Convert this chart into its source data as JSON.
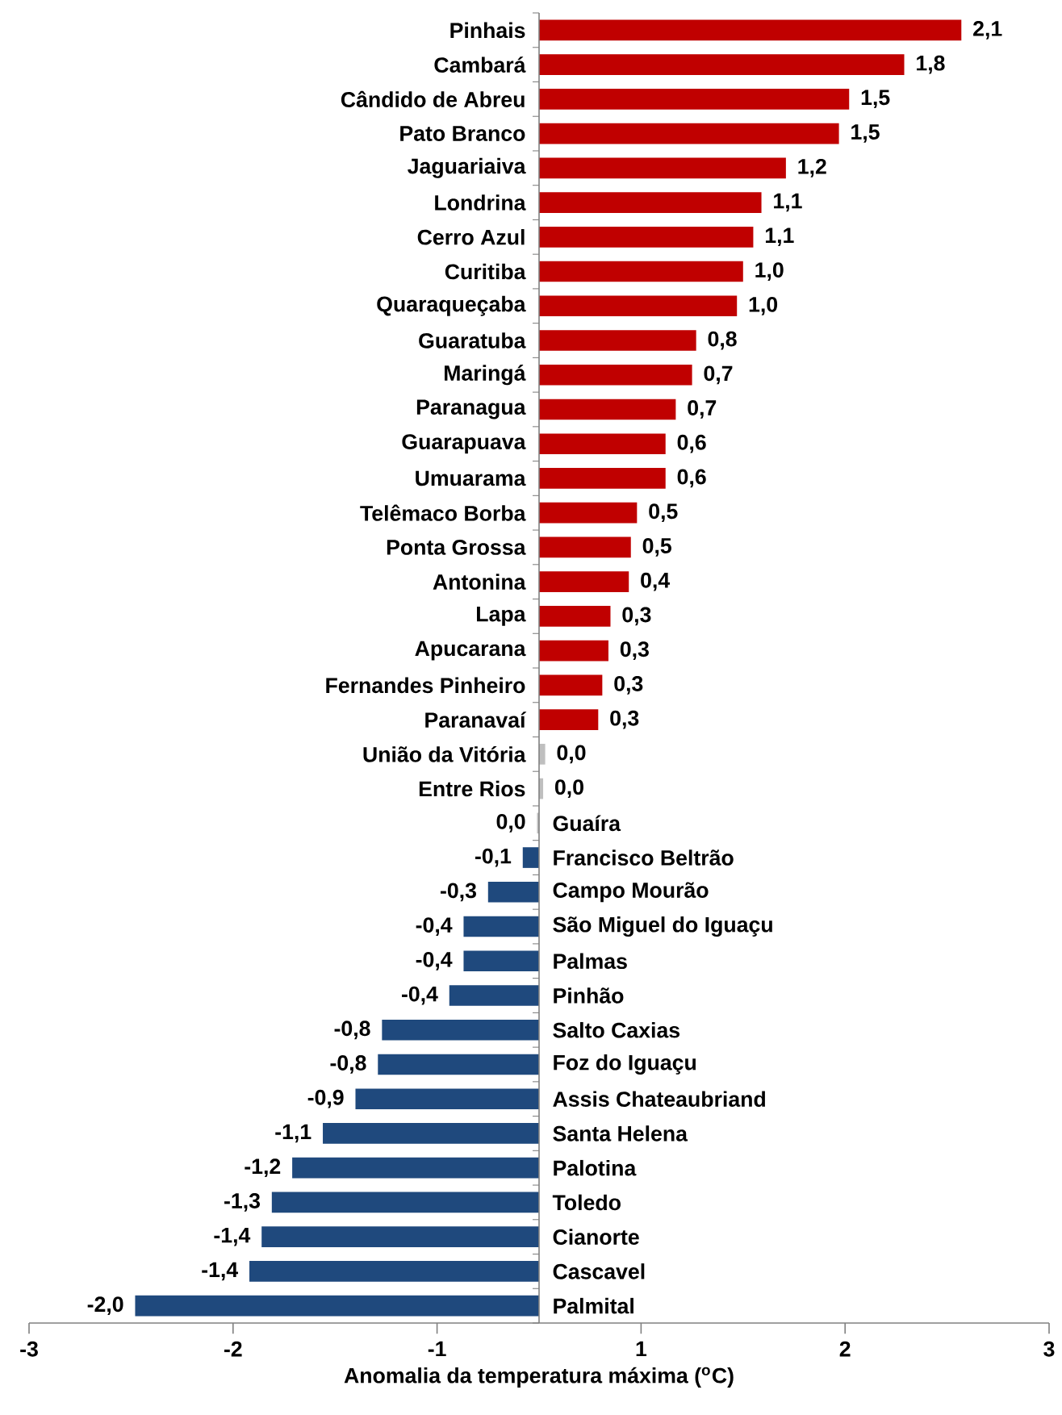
{
  "chart_data": {
    "type": "bar",
    "orientation": "horizontal",
    "xlabel": "Anomalia da temperatura máxima ($^{o}$C)",
    "categories": [
      "Pinhais",
      "Cambará",
      "Cândido de Abreu",
      "Pato Branco",
      "Jaguariaiva",
      "Londrina",
      "Cerro Azul",
      "Curitiba",
      "Quaraqueçaba",
      "Guaratuba",
      "Maringá",
      "Paranagua",
      "Guarapuava",
      "Umuarama",
      "Telêmaco Borba",
      "Ponta Grossa",
      "Antonina",
      "Lapa",
      "Apucarana",
      "Fernandes Pinheiro",
      "Paranavaí",
      "União da Vitória",
      "Entre Rios",
      "Guaíra",
      "Francisco Beltrão",
      "Campo Mourão",
      "São Miguel do Iguaçu",
      "Palmas",
      "Pinhão",
      "Salto Caxias",
      "Foz do Iguaçu",
      "Assis Chateaubriand",
      "Santa Helena",
      "Palotina",
      "Toledo",
      "Cianorte",
      "Cascavel",
      "Palmital"
    ],
    "values": [
      2.07,
      1.79,
      1.52,
      1.47,
      1.21,
      1.09,
      1.05,
      1.0,
      0.97,
      0.77,
      0.75,
      0.67,
      0.62,
      0.62,
      0.48,
      0.45,
      0.44,
      0.35,
      0.34,
      0.31,
      0.29,
      0.03,
      0.02,
      -0.01,
      -0.08,
      -0.25,
      -0.37,
      -0.37,
      -0.44,
      -0.77,
      -0.79,
      -0.9,
      -1.06,
      -1.21,
      -1.31,
      -1.36,
      -1.42,
      -1.98
    ],
    "value_labels": [
      "2,1",
      "1,8",
      "1,5",
      "1,5",
      "1,2",
      "1,1",
      "1,1",
      "1,0",
      "1,0",
      "0,8",
      "0,7",
      "0,7",
      "0,6",
      "0,6",
      "0,5",
      "0,5",
      "0,4",
      "0,3",
      "0,3",
      "0,3",
      "0,3",
      "0,0",
      "0,0",
      "0,0",
      "-0,1",
      "-0,3",
      "-0,4",
      "-0,4",
      "-0,4",
      "-0,8",
      "-0,8",
      "-0,9",
      "-1,1",
      "-1,2",
      "-1,3",
      "-1,4",
      "-1,4",
      "-2,0"
    ],
    "colors": [
      "#c00000",
      "#c00000",
      "#c00000",
      "#c00000",
      "#c00000",
      "#c00000",
      "#c00000",
      "#c00000",
      "#c00000",
      "#c00000",
      "#c00000",
      "#c00000",
      "#c00000",
      "#c00000",
      "#c00000",
      "#c00000",
      "#c00000",
      "#c00000",
      "#c00000",
      "#c00000",
      "#c00000",
      "#bfbfbf",
      "#bfbfbf",
      "#bfbfbf",
      "#1f497d",
      "#1f497d",
      "#1f497d",
      "#1f497d",
      "#1f497d",
      "#1f497d",
      "#1f497d",
      "#1f497d",
      "#1f497d",
      "#1f497d",
      "#1f497d",
      "#1f497d",
      "#1f497d",
      "#1f497d"
    ],
    "xlim": [
      -2.5,
      2.5
    ],
    "xticks": [
      {
        "value": -2.5,
        "label": "-3"
      },
      {
        "value": -1.5,
        "label": "-2"
      },
      {
        "value": -0.5,
        "label": "-1"
      },
      {
        "value": 0.5,
        "label": "1"
      },
      {
        "value": 1.5,
        "label": "2"
      },
      {
        "value": 2.5,
        "label": "3"
      }
    ]
  }
}
